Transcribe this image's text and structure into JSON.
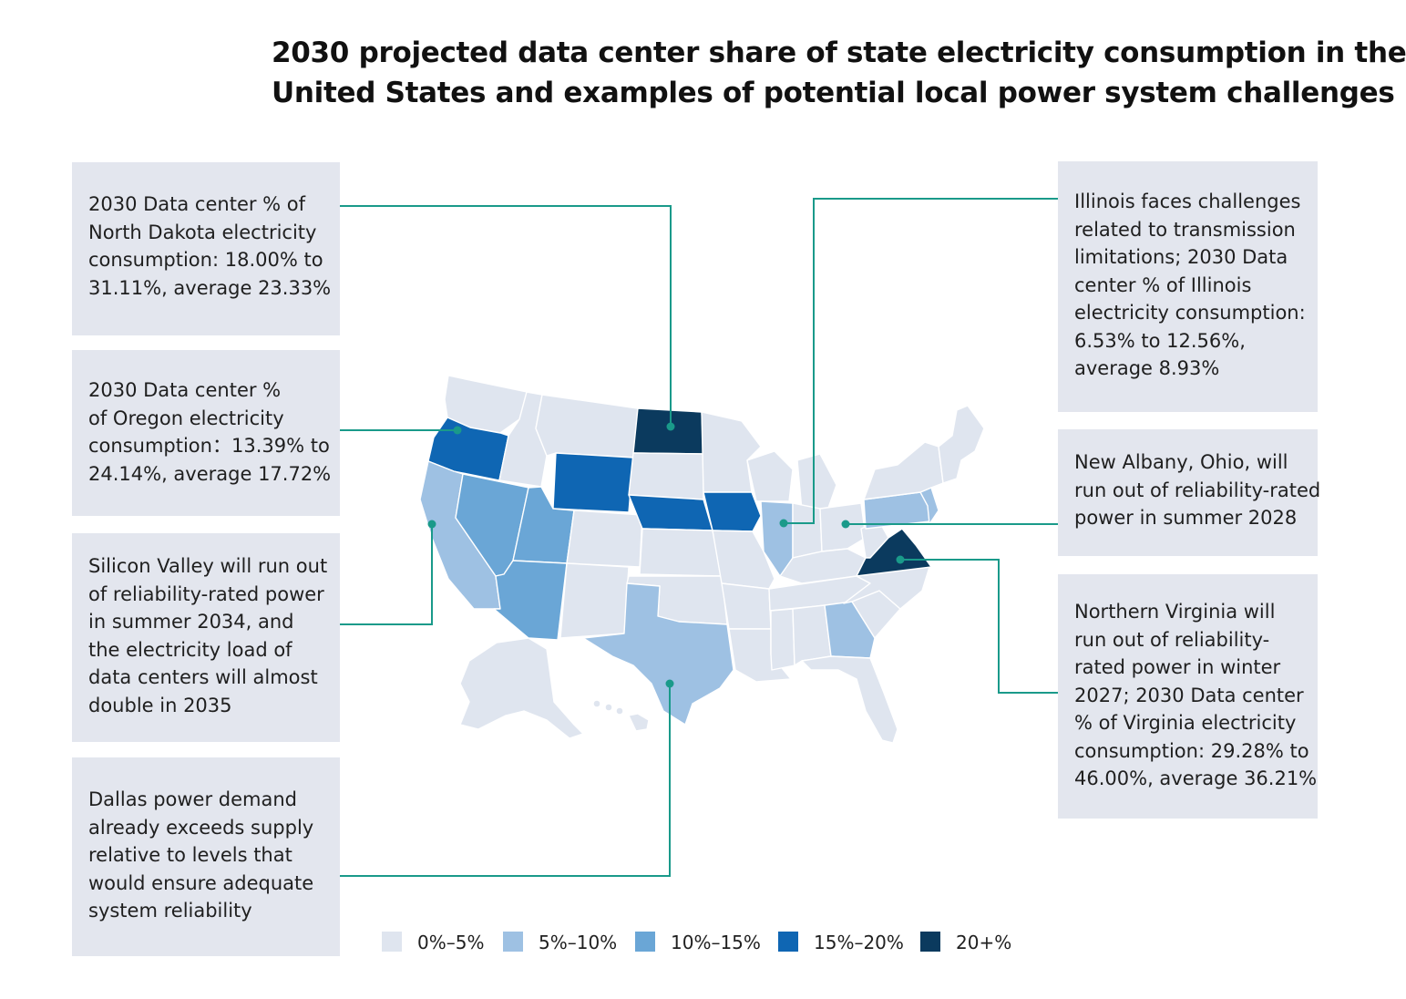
{
  "title": {
    "line1": "2030 projected data center share of state electricity consumption in the",
    "line2": "United States and examples of potential local power system challenges"
  },
  "colors": {
    "bin_0_5": "#dfe5ef",
    "bin_5_10": "#9ec1e3",
    "bin_10_15": "#6aa6d6",
    "bin_15_20": "#0f66b3",
    "bin_20_plus": "#0b3a5e",
    "connector": "#1a9a8a",
    "callout_bg": "#e3e6ee"
  },
  "callouts": {
    "north_dakota": {
      "lines": [
        "2030 Data center % of",
        "North Dakota electricity",
        "consumption: 18.00% to",
        "31.11%, average 23.33%"
      ]
    },
    "oregon": {
      "lines": [
        "2030 Data center %",
        "of Oregon electricity",
        "consumption：13.39% to",
        "24.14%, average 17.72%"
      ]
    },
    "silicon_valley": {
      "lines": [
        "Silicon Valley will run out",
        "of reliability-rated power",
        "in summer 2034, and",
        "the electricity load of",
        "data centers will almost",
        "double in 2035"
      ]
    },
    "dallas": {
      "lines": [
        "Dallas power demand",
        "already exceeds supply",
        "relative to levels that",
        "would ensure adequate",
        "system reliability"
      ]
    },
    "illinois": {
      "lines": [
        "Illinois faces challenges",
        "related to transmission",
        "limitations; 2030 Data",
        "center % of Illinois",
        "electricity consumption:",
        "6.53% to 12.56%,",
        "average 8.93%"
      ]
    },
    "ohio": {
      "lines": [
        "New Albany, Ohio, will",
        "run out of reliability-rated",
        "power in summer 2028"
      ]
    },
    "virginia": {
      "lines": [
        "Northern Virginia will",
        "run out of reliability-",
        "rated power in winter",
        "2027; 2030 Data center",
        "% of Virginia electricity",
        "consumption: 29.28% to",
        "46.00%, average 36.21%"
      ]
    }
  },
  "legend": [
    {
      "label": "0%–5%",
      "color": "#dfe5ef"
    },
    {
      "label": "5%–10%",
      "color": "#9ec1e3"
    },
    {
      "label": "10%–15%",
      "color": "#6aa6d6"
    },
    {
      "label": "15%–20%",
      "color": "#0f66b3"
    },
    {
      "label": "20+%",
      "color": "#0b3a5e"
    }
  ],
  "state_bins": {
    "WA": "0-5",
    "OR": "15-20",
    "CA": "5-10",
    "NV": "10-15",
    "ID": "0-5",
    "MT": "0-5",
    "WY": "15-20",
    "UT": "10-15",
    "AZ": "10-15",
    "CO": "0-5",
    "NM": "0-5",
    "ND": "20+",
    "SD": "0-5",
    "NE": "15-20",
    "KS": "0-5",
    "OK": "0-5",
    "TX": "5-10",
    "MN": "0-5",
    "IA": "15-20",
    "MO": "0-5",
    "AR": "0-5",
    "LA": "0-5",
    "WI": "0-5",
    "IL": "5-10",
    "MI": "0-5",
    "IN": "0-5",
    "OH": "0-5",
    "KY": "0-5",
    "TN": "0-5",
    "MS": "0-5",
    "AL": "0-5",
    "GA": "5-10",
    "FL": "0-5",
    "SC": "0-5",
    "NC": "0-5",
    "VA": "20+",
    "WV": "0-5",
    "PA": "5-10",
    "NY": "0-5",
    "NJ": "5-10",
    "NE_states": "0-5",
    "AK": "0-5",
    "HI": "0-5"
  }
}
